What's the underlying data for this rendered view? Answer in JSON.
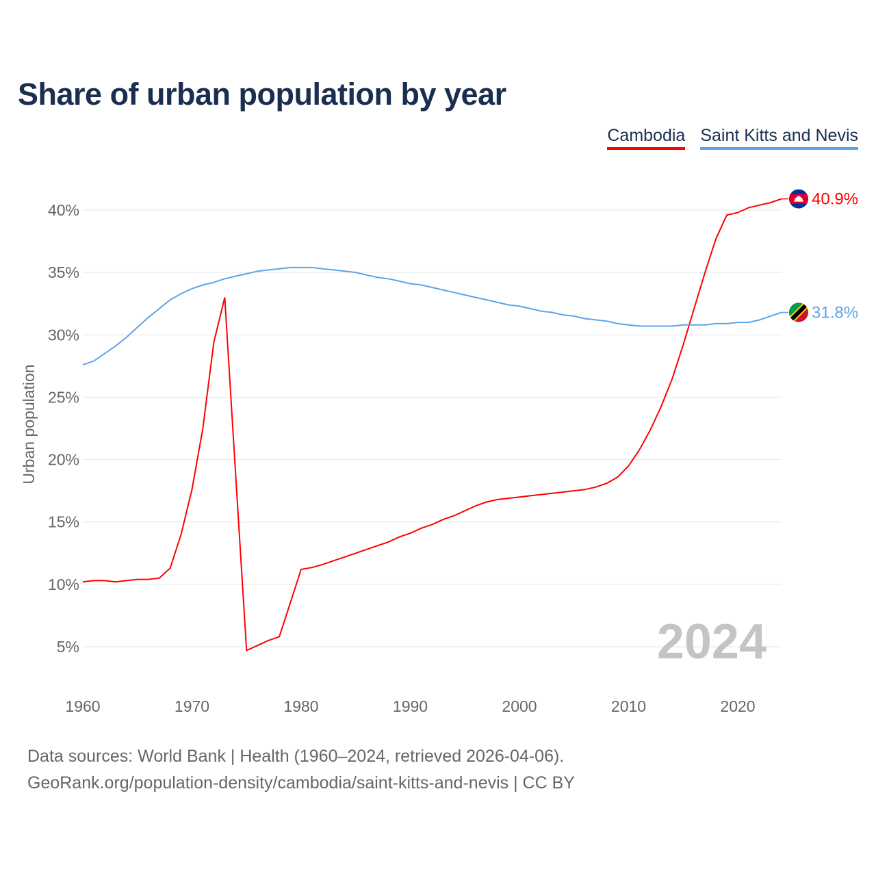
{
  "chart_data": {
    "type": "line",
    "title": "Share of urban population by year",
    "xlabel": "",
    "ylabel": "Urban population",
    "xlim": [
      1960,
      2024
    ],
    "ylim": [
      2.5,
      42.5
    ],
    "yticks": [
      5,
      10,
      15,
      20,
      25,
      30,
      35,
      40
    ],
    "ytick_labels": [
      "5%",
      "10%",
      "15%",
      "20%",
      "25%",
      "30%",
      "35%",
      "40%"
    ],
    "xticks": [
      1960,
      1970,
      1980,
      1990,
      2000,
      2010,
      2020
    ],
    "xtick_labels": [
      "1960",
      "1970",
      "1980",
      "1990",
      "2000",
      "2010",
      "2020"
    ],
    "grid": true,
    "legend_placement": "top-right",
    "year_watermark": "2024",
    "x": [
      1960,
      1961,
      1962,
      1963,
      1964,
      1965,
      1966,
      1967,
      1968,
      1969,
      1970,
      1971,
      1972,
      1973,
      1974,
      1975,
      1976,
      1977,
      1978,
      1979,
      1980,
      1981,
      1982,
      1983,
      1984,
      1985,
      1986,
      1987,
      1988,
      1989,
      1990,
      1991,
      1992,
      1993,
      1994,
      1995,
      1996,
      1997,
      1998,
      1999,
      2000,
      2001,
      2002,
      2003,
      2004,
      2005,
      2006,
      2007,
      2008,
      2009,
      2010,
      2011,
      2012,
      2013,
      2014,
      2015,
      2016,
      2017,
      2018,
      2019,
      2020,
      2021,
      2022,
      2023,
      2024
    ],
    "series": [
      {
        "name": "Cambodia",
        "color": "#ff0000",
        "end_label": "40.9%",
        "values": [
          10.2,
          10.3,
          10.3,
          10.2,
          10.3,
          10.4,
          10.4,
          10.5,
          11.3,
          14.0,
          17.6,
          22.5,
          29.4,
          33.0,
          18.8,
          4.7,
          5.1,
          5.5,
          5.8,
          8.5,
          11.2,
          11.35,
          11.6,
          11.9,
          12.2,
          12.5,
          12.8,
          13.1,
          13.4,
          13.8,
          14.1,
          14.5,
          14.8,
          15.2,
          15.5,
          15.9,
          16.3,
          16.6,
          16.8,
          16.9,
          17.0,
          17.1,
          17.2,
          17.3,
          17.4,
          17.5,
          17.6,
          17.8,
          18.1,
          18.6,
          19.5,
          20.8,
          22.4,
          24.3,
          26.5,
          29.2,
          32.1,
          35.0,
          37.7,
          39.6,
          39.8,
          40.2,
          40.4,
          40.6,
          40.9
        ]
      },
      {
        "name": "Saint Kitts and Nevis",
        "color": "#5ba4e8",
        "end_label": "31.8%",
        "values": [
          27.6,
          27.9,
          28.5,
          29.1,
          29.8,
          30.6,
          31.4,
          32.1,
          32.8,
          33.3,
          33.7,
          34.0,
          34.2,
          34.5,
          34.7,
          34.9,
          35.1,
          35.2,
          35.3,
          35.4,
          35.4,
          35.4,
          35.3,
          35.2,
          35.1,
          35.0,
          34.8,
          34.6,
          34.5,
          34.3,
          34.1,
          34.0,
          33.8,
          33.6,
          33.4,
          33.2,
          33.0,
          32.8,
          32.6,
          32.4,
          32.3,
          32.1,
          31.9,
          31.8,
          31.6,
          31.5,
          31.3,
          31.2,
          31.1,
          30.9,
          30.8,
          30.7,
          30.7,
          30.7,
          30.7,
          30.8,
          30.8,
          30.8,
          30.9,
          30.9,
          31.0,
          31.0,
          31.2,
          31.5,
          31.8
        ]
      }
    ]
  },
  "footer": {
    "line1": "Data sources: World Bank | Health (1960–2024, retrieved 2026-04-06).",
    "line2": "GeoRank.org/population-density/cambodia/saint-kitts-and-nevis | CC BY"
  }
}
